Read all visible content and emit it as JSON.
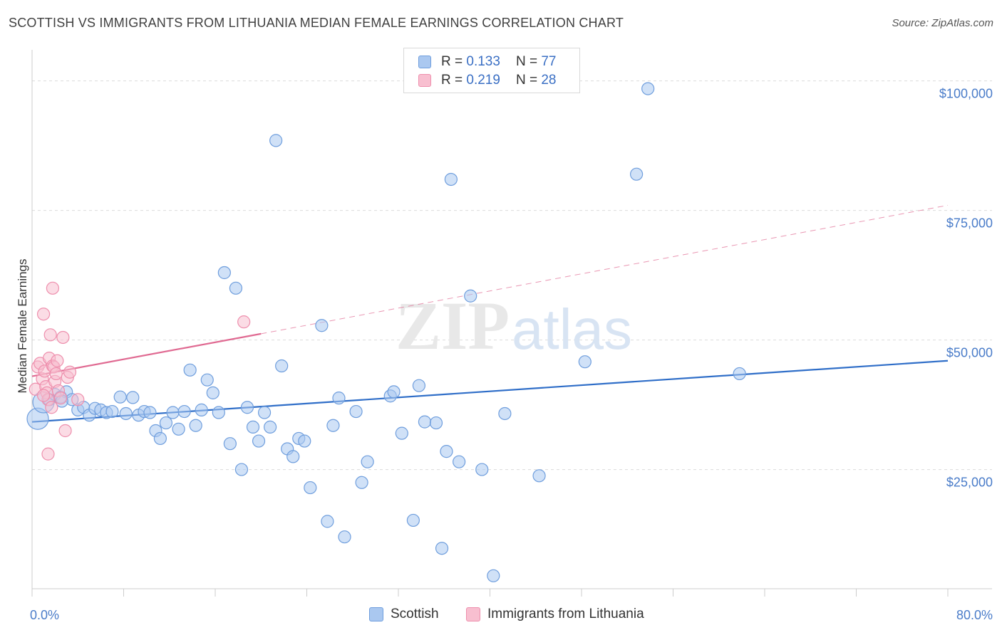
{
  "header": {
    "title": "SCOTTISH VS IMMIGRANTS FROM LITHUANIA MEDIAN FEMALE EARNINGS CORRELATION CHART",
    "source": "Source: ZipAtlas.com"
  },
  "watermark": {
    "part1": "ZIP",
    "part2": "atlas"
  },
  "legend": {
    "rows": [
      {
        "r_label": "R = ",
        "r_value": "0.133",
        "n_label": "N = ",
        "n_value": "77"
      },
      {
        "r_label": "R = ",
        "r_value": "0.219",
        "n_label": "N = ",
        "n_value": "28"
      }
    ]
  },
  "bottom_legend": [
    {
      "label": "Scottish"
    },
    {
      "label": "Immigrants from Lithuania"
    }
  ],
  "colors": {
    "scottish_fill": "#aac8f0",
    "scottish_stroke": "#6f9edd",
    "scottish_line": "#2f6ec8",
    "lithuania_fill": "#f8bfd0",
    "lithuania_stroke": "#ee8fad",
    "lithuania_line": "#e06a92",
    "grid": "#dcdcdc",
    "tick_text": "#4a7cc9"
  },
  "chart_data": {
    "type": "scatter",
    "title": "SCOTTISH VS IMMIGRANTS FROM LITHUANIA MEDIAN FEMALE EARNINGS CORRELATION CHART",
    "xlabel": "",
    "ylabel": "Median Female Earnings",
    "xlim": [
      0,
      80
    ],
    "ylim": [
      2000,
      106000
    ],
    "x_tick_labels": [
      {
        "value": 0,
        "label": "0.0%"
      },
      {
        "value": 80,
        "label": "80.0%"
      }
    ],
    "y_tick_labels": [
      {
        "value": 25000,
        "label": "$25,000"
      },
      {
        "value": 50000,
        "label": "$50,000"
      },
      {
        "value": 75000,
        "label": "$75,000"
      },
      {
        "value": 100000,
        "label": "$100,000"
      }
    ],
    "grid": true,
    "legend_position": "top-center",
    "series": [
      {
        "name": "Scottish",
        "r": 0.133,
        "n": 77,
        "trend": {
          "x0": 0,
          "y0": 34200,
          "x1": 80,
          "y1": 46000
        },
        "points": [
          [
            0.5,
            34800
          ],
          [
            1.0,
            38000
          ],
          [
            1.5,
            38500
          ],
          [
            2.0,
            39500
          ],
          [
            2.5,
            39000
          ],
          [
            3.0,
            40000
          ],
          [
            3.5,
            38500
          ],
          [
            4.0,
            36500
          ],
          [
            4.5,
            37000
          ],
          [
            5.0,
            35500
          ],
          [
            5.5,
            36800
          ],
          [
            6.0,
            36500
          ],
          [
            6.5,
            36000
          ],
          [
            7.0,
            36200
          ],
          [
            7.7,
            39000
          ],
          [
            8.2,
            35800
          ],
          [
            8.8,
            38900
          ],
          [
            9.3,
            35500
          ],
          [
            9.8,
            36200
          ],
          [
            10.3,
            36000
          ],
          [
            10.8,
            32500
          ],
          [
            11.2,
            31000
          ],
          [
            11.7,
            34000
          ],
          [
            12.3,
            36000
          ],
          [
            12.8,
            32800
          ],
          [
            13.3,
            36200
          ],
          [
            13.8,
            44200
          ],
          [
            14.3,
            33500
          ],
          [
            14.8,
            36500
          ],
          [
            15.3,
            42300
          ],
          [
            15.8,
            39800
          ],
          [
            16.3,
            36000
          ],
          [
            16.8,
            63000
          ],
          [
            17.3,
            30000
          ],
          [
            17.8,
            60000
          ],
          [
            18.3,
            25000
          ],
          [
            18.8,
            37000
          ],
          [
            19.3,
            33200
          ],
          [
            19.8,
            30500
          ],
          [
            20.3,
            36000
          ],
          [
            20.8,
            33200
          ],
          [
            21.3,
            88500
          ],
          [
            21.8,
            45000
          ],
          [
            22.3,
            29000
          ],
          [
            22.8,
            27500
          ],
          [
            23.3,
            31000
          ],
          [
            23.8,
            30500
          ],
          [
            24.3,
            21500
          ],
          [
            25.3,
            52800
          ],
          [
            25.8,
            15000
          ],
          [
            26.3,
            33500
          ],
          [
            26.8,
            38800
          ],
          [
            27.3,
            12000
          ],
          [
            28.3,
            36200
          ],
          [
            28.8,
            22500
          ],
          [
            29.3,
            26500
          ],
          [
            31.3,
            39200
          ],
          [
            31.6,
            40000
          ],
          [
            32.3,
            32000
          ],
          [
            33.3,
            15200
          ],
          [
            33.8,
            41200
          ],
          [
            34.3,
            34200
          ],
          [
            35.3,
            34000
          ],
          [
            35.8,
            9800
          ],
          [
            36.2,
            28500
          ],
          [
            36.6,
            81000
          ],
          [
            37.3,
            26500
          ],
          [
            38.3,
            58500
          ],
          [
            39.3,
            25000
          ],
          [
            40.3,
            4500
          ],
          [
            41.3,
            35800
          ],
          [
            44.3,
            23800
          ],
          [
            48.3,
            45800
          ],
          [
            52.8,
            82000
          ],
          [
            53.8,
            98500
          ],
          [
            61.8,
            43500
          ],
          [
            2.6,
            38200
          ]
        ]
      },
      {
        "name": "Immigrants from Lithuania",
        "r": 0.219,
        "n": 28,
        "trend": {
          "x0": 0,
          "y0": 43000,
          "x1": 20,
          "y1": 51200
        },
        "trend_dashed_to": {
          "x": 80,
          "y": 76000
        },
        "points": [
          [
            0.3,
            40500
          ],
          [
            0.5,
            44800
          ],
          [
            0.7,
            45500
          ],
          [
            0.9,
            42500
          ],
          [
            1.0,
            55000
          ],
          [
            1.1,
            44000
          ],
          [
            1.2,
            41000
          ],
          [
            1.3,
            39800
          ],
          [
            1.4,
            38500
          ],
          [
            1.5,
            46500
          ],
          [
            1.6,
            51000
          ],
          [
            1.7,
            37000
          ],
          [
            1.8,
            45000
          ],
          [
            1.9,
            44800
          ],
          [
            2.0,
            42000
          ],
          [
            2.1,
            43500
          ],
          [
            1.4,
            28000
          ],
          [
            1.8,
            60000
          ],
          [
            2.3,
            40200
          ],
          [
            2.5,
            38800
          ],
          [
            2.7,
            50500
          ],
          [
            2.9,
            32500
          ],
          [
            3.1,
            42800
          ],
          [
            3.3,
            43800
          ],
          [
            1.0,
            39300
          ],
          [
            2.2,
            46000
          ],
          [
            4.0,
            38500
          ],
          [
            18.5,
            53500
          ]
        ]
      }
    ]
  }
}
